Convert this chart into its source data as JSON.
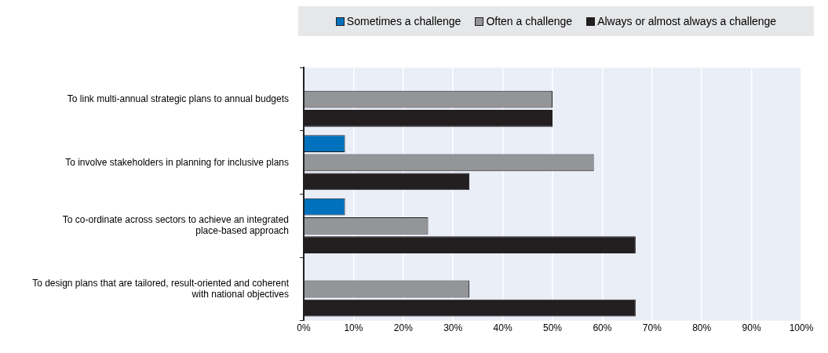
{
  "chart_data": {
    "type": "bar",
    "orientation": "horizontal",
    "categories": [
      "To link multi-annual strategic plans to annual budgets",
      "To involve stakeholders in planning for inclusive plans",
      "To co-ordinate across sectors to achieve an integrated place-based approach",
      "To design plans that are tailored, result-oriented and coherent with national objectives"
    ],
    "series": [
      {
        "name": "Sometimes a challenge",
        "color": "#0071bc",
        "values": [
          0,
          8.3,
          8.3,
          0
        ]
      },
      {
        "name": "Often a challenge",
        "color": "#949599",
        "values": [
          50,
          58.3,
          25,
          33.3
        ]
      },
      {
        "name": "Always or almost always a challenge",
        "color": "#231f20",
        "values": [
          50,
          33.3,
          66.7,
          66.7
        ]
      }
    ],
    "xlim": [
      0,
      100
    ],
    "xticks": [
      {
        "value": 0,
        "label": "0%"
      },
      {
        "value": 10,
        "label": "10%"
      },
      {
        "value": 20,
        "label": "20%"
      },
      {
        "value": 30,
        "label": "30%"
      },
      {
        "value": 40,
        "label": "40%"
      },
      {
        "value": 50,
        "label": "50%"
      },
      {
        "value": 60,
        "label": "60%"
      },
      {
        "value": 70,
        "label": "70%"
      },
      {
        "value": 80,
        "label": "80%"
      },
      {
        "value": 90,
        "label": "90%"
      },
      {
        "value": 100,
        "label": "100%"
      }
    ],
    "grid": "x",
    "legend": "top"
  }
}
